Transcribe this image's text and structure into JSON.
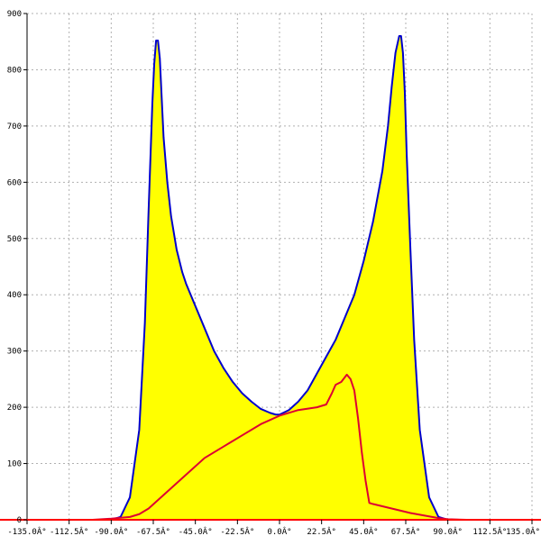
{
  "chart_data": {
    "type": "area",
    "title": "",
    "xlabel": "",
    "ylabel": "",
    "xlim": [
      -135,
      135
    ],
    "ylim": [
      0,
      900
    ],
    "grid": true,
    "x_ticks": [
      -135,
      -112.5,
      -90,
      -67.5,
      -45,
      -22.5,
      0,
      22.5,
      45,
      67.5,
      90,
      112.5,
      135
    ],
    "x_tick_labels": [
      "-135.0Â°",
      "-112.5Â°",
      "-90.0Â°",
      "-67.5Â°",
      "-45.0Â°",
      "-22.5Â°",
      "0.0Â°",
      "22.5Â°",
      "45.0Â°",
      "67.5Â°",
      "90.0Â°",
      "112.5Â°",
      "135.0Â°"
    ],
    "y_ticks": [
      0,
      100,
      200,
      300,
      400,
      500,
      600,
      700,
      800,
      900
    ],
    "y_tick_labels": [
      "0",
      "100",
      "200",
      "300",
      "400",
      "500",
      "600",
      "700",
      "800",
      "900"
    ],
    "colors": {
      "area_fill": "#ffff00",
      "area_line": "#0000cc",
      "series2_line": "#dd0033",
      "baseline": "#ff0000",
      "grid": "#b0b0b0",
      "axis": "#000000"
    },
    "series": [
      {
        "values_x": [
          -135,
          -90,
          -85,
          -80,
          -75,
          -72,
          -70,
          -68,
          -67,
          -66,
          -65,
          -64,
          -63,
          -62,
          -60,
          -58,
          -55,
          -52,
          -50,
          -45,
          -40,
          -35,
          -30,
          -25,
          -20,
          -15,
          -10,
          -5,
          -2,
          0,
          5,
          10,
          15,
          20,
          25,
          30,
          35,
          40,
          45,
          50,
          55,
          58,
          60,
          62,
          64,
          65,
          66,
          67,
          68,
          70,
          72,
          75,
          80,
          85,
          90,
          135
        ],
        "values_y": [
          0,
          0,
          5,
          40,
          160,
          350,
          550,
          740,
          810,
          852,
          852,
          820,
          750,
          680,
          600,
          540,
          480,
          440,
          420,
          380,
          340,
          300,
          270,
          245,
          225,
          210,
          197,
          190,
          187,
          187,
          195,
          210,
          230,
          260,
          290,
          320,
          360,
          400,
          460,
          530,
          620,
          700,
          770,
          830,
          860,
          860,
          830,
          760,
          650,
          480,
          320,
          160,
          40,
          5,
          0,
          0
        ]
      },
      {
        "values_x": [
          -135,
          -100,
          -90,
          -80,
          -75,
          -70,
          -60,
          -50,
          -40,
          -30,
          -20,
          -10,
          0,
          10,
          20,
          25,
          28,
          30,
          33,
          36,
          38,
          40,
          42,
          44,
          46,
          48,
          50,
          60,
          70,
          80,
          85,
          90,
          100,
          135
        ],
        "values_y": [
          0,
          0,
          2,
          5,
          10,
          20,
          50,
          80,
          110,
          130,
          150,
          170,
          185,
          195,
          200,
          205,
          225,
          240,
          245,
          258,
          250,
          230,
          180,
          120,
          70,
          30,
          28,
          20,
          12,
          6,
          3,
          1,
          0,
          0
        ]
      }
    ]
  }
}
